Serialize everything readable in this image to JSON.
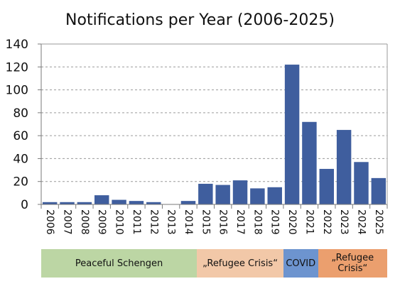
{
  "chart_data": {
    "type": "bar",
    "title": "Notifications per Year (2006-2025)",
    "xlabel": "",
    "ylabel": "",
    "ylim": [
      0,
      140
    ],
    "yticks": [
      0,
      20,
      40,
      60,
      80,
      100,
      120,
      140
    ],
    "grid": "horizontal-dashed",
    "categories": [
      "2006",
      "2007",
      "2008",
      "2009",
      "2010",
      "2011",
      "2012",
      "2013",
      "2014",
      "2015",
      "2016",
      "2017",
      "2018",
      "2019",
      "2020",
      "2021",
      "2022",
      "2023",
      "2024",
      "2025"
    ],
    "values": [
      2,
      2,
      2,
      8,
      4,
      3,
      2,
      0,
      3,
      18,
      17,
      21,
      14,
      15,
      122,
      72,
      31,
      65,
      37,
      23
    ],
    "bar_color": "#3f5e9e",
    "phases": [
      {
        "label": "Peaceful Schengen",
        "from": "2006",
        "to": "2014",
        "color": "#bcd6a4"
      },
      {
        "label": "„Refugee Crisis“",
        "from": "2015",
        "to": "2019",
        "color": "#f2c8a8"
      },
      {
        "label": "COVID",
        "from": "2020",
        "to": "2021",
        "color": "#6d94cf"
      },
      {
        "label": "„Refugee Crisis“",
        "from": "2022",
        "to": "2025",
        "color": "#eb9f6e"
      }
    ]
  }
}
